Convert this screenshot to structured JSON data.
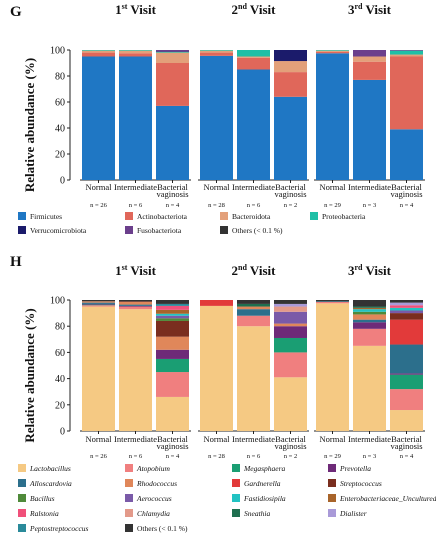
{
  "chart_data": [
    {
      "type": "bar",
      "stacked": true,
      "panel_label": "G",
      "ylabel": "Relative abundance (%)",
      "ylim": [
        0,
        100
      ],
      "yticks": [
        0,
        20,
        40,
        60,
        80,
        100
      ],
      "categories": [
        "Normal",
        "Intermediate",
        "Bacterial vaginosis"
      ],
      "legend_placement": "bottom",
      "groups": [
        {
          "title": "Visit",
          "ordinal_num": "1",
          "ordinal_suffix": "st",
          "counts": [
            "n = 26",
            "n = 6",
            "n = 4"
          ],
          "series": [
            {
              "name": "Firmicutes",
              "values": [
                95,
                95,
                57
              ]
            },
            {
              "name": "Actinobacteriota",
              "values": [
                3,
                2.5,
                33
              ]
            },
            {
              "name": "Bacteroidota",
              "values": [
                1.5,
                2,
                8
              ]
            },
            {
              "name": "Proteobacteria",
              "values": [
                0.5,
                0.5,
                0.5
              ]
            },
            {
              "name": "Verrucomicrobiota",
              "values": [
                0,
                0,
                0.5
              ]
            },
            {
              "name": "Fusobacteriota",
              "values": [
                0,
                0,
                1
              ]
            },
            {
              "name": "Others (< 0.1 %)",
              "values": [
                0,
                0,
                0
              ]
            }
          ]
        },
        {
          "title": "Visit",
          "ordinal_num": "2",
          "ordinal_suffix": "nd",
          "counts": [
            "n = 28",
            "n = 6",
            "n = 2"
          ],
          "series": [
            {
              "name": "Firmicutes",
              "values": [
                95.5,
                85,
                64
              ]
            },
            {
              "name": "Actinobacteriota",
              "values": [
                2.5,
                9,
                19
              ]
            },
            {
              "name": "Bacteroidota",
              "values": [
                1.5,
                1,
                8.5
              ]
            },
            {
              "name": "Proteobacteria",
              "values": [
                0.5,
                5,
                0
              ]
            },
            {
              "name": "Verrucomicrobiota",
              "values": [
                0,
                0,
                8.5
              ]
            },
            {
              "name": "Fusobacteriota",
              "values": [
                0,
                0,
                0
              ]
            },
            {
              "name": "Others (< 0.1 %)",
              "values": [
                0,
                0,
                0
              ]
            }
          ]
        },
        {
          "title": "Visit",
          "ordinal_num": "3",
          "ordinal_suffix": "rd",
          "counts": [
            "n = 29",
            "n = 3",
            "n = 4"
          ],
          "series": [
            {
              "name": "Firmicutes",
              "values": [
                97.5,
                77,
                39
              ]
            },
            {
              "name": "Actinobacteriota",
              "values": [
                1,
                14,
                56
              ]
            },
            {
              "name": "Bacteroidota",
              "values": [
                1,
                4,
                1.5
              ]
            },
            {
              "name": "Proteobacteria",
              "values": [
                0.5,
                0,
                3
              ]
            },
            {
              "name": "Verrucomicrobiota",
              "values": [
                0,
                0,
                0
              ]
            },
            {
              "name": "Fusobacteriota",
              "values": [
                0,
                5,
                0.5
              ]
            },
            {
              "name": "Others (< 0.1 %)",
              "values": [
                0,
                0,
                0
              ]
            }
          ]
        }
      ],
      "legend": [
        {
          "name": "Firmicutes",
          "color": "#1f77c4"
        },
        {
          "name": "Actinobacteriota",
          "color": "#e0675a"
        },
        {
          "name": "Bacteroidota",
          "color": "#e3a07a"
        },
        {
          "name": "Proteobacteria",
          "color": "#1fbfa6"
        },
        {
          "name": "Verrucomicrobiota",
          "color": "#1b1b6b"
        },
        {
          "name": "Fusobacteriota",
          "color": "#6b3f8c"
        },
        {
          "name": "Others (< 0.1 %)",
          "color": "#333333"
        }
      ]
    },
    {
      "type": "bar",
      "stacked": true,
      "panel_label": "H",
      "ylabel": "Relative abundance (%)",
      "ylim": [
        0,
        100
      ],
      "yticks": [
        0,
        20,
        40,
        60,
        80,
        100
      ],
      "categories": [
        "Normal",
        "Intermediate",
        "Bacterial vaginosis"
      ],
      "legend_placement": "bottom",
      "groups": [
        {
          "title": "Visit",
          "ordinal_num": "1",
          "ordinal_suffix": "st",
          "counts": [
            "n = 26",
            "n = 6",
            "n = 4"
          ],
          "series": [
            {
              "name": "Lactobacillus",
              "values": [
                95,
                93,
                26
              ]
            },
            {
              "name": "Atopobium",
              "values": [
                1,
                2,
                19
              ]
            },
            {
              "name": "Megasphaera",
              "values": [
                0.5,
                0,
                10
              ]
            },
            {
              "name": "Prevotella",
              "values": [
                0.5,
                0.5,
                7
              ]
            },
            {
              "name": "Alloscardovia",
              "values": [
                1,
                1,
                0
              ]
            },
            {
              "name": "Rhodococcus",
              "values": [
                1,
                2,
                10
              ]
            },
            {
              "name": "Gardnerella",
              "values": [
                0,
                0,
                0
              ]
            },
            {
              "name": "Streptococcus",
              "values": [
                0,
                0.5,
                12
              ]
            },
            {
              "name": "Bacillus",
              "values": [
                0,
                0,
                2
              ]
            },
            {
              "name": "Aerococcus",
              "values": [
                0,
                0,
                2
              ]
            },
            {
              "name": "Fastidiosipila",
              "values": [
                0,
                0,
                1.5
              ]
            },
            {
              "name": "Enterobacteriaceae_Uncultured",
              "values": [
                0,
                0,
                3
              ]
            },
            {
              "name": "Ralstonia",
              "values": [
                0,
                0,
                3
              ]
            },
            {
              "name": "Chlamydia",
              "values": [
                0,
                0,
                0
              ]
            },
            {
              "name": "Sneathia",
              "values": [
                0,
                0,
                0
              ]
            },
            {
              "name": "Dialister",
              "values": [
                0,
                0,
                0
              ]
            },
            {
              "name": "Peptostreptococcus",
              "values": [
                0,
                0,
                1.5
              ]
            },
            {
              "name": "Others (< 0.1 %)",
              "values": [
                1,
                1,
                3
              ]
            }
          ]
        },
        {
          "title": "Visit",
          "ordinal_num": "2",
          "ordinal_suffix": "nd",
          "counts": [
            "n = 28",
            "n = 6",
            "n = 2"
          ],
          "series": [
            {
              "name": "Lactobacillus",
              "values": [
                95.5,
                80,
                41
              ]
            },
            {
              "name": "Atopobium",
              "values": [
                0,
                8,
                19
              ]
            },
            {
              "name": "Megasphaera",
              "values": [
                0,
                0,
                11
              ]
            },
            {
              "name": "Prevotella",
              "values": [
                0,
                0,
                9
              ]
            },
            {
              "name": "Alloscardovia",
              "values": [
                0,
                5,
                0
              ]
            },
            {
              "name": "Rhodococcus",
              "values": [
                0,
                2,
                2
              ]
            },
            {
              "name": "Gardnerella",
              "values": [
                4.5,
                0,
                0
              ]
            },
            {
              "name": "Streptococcus",
              "values": [
                0,
                0,
                0
              ]
            },
            {
              "name": "Bacillus",
              "values": [
                0,
                0,
                0
              ]
            },
            {
              "name": "Aerococcus",
              "values": [
                0,
                0,
                9
              ]
            },
            {
              "name": "Fastidiosipila",
              "values": [
                0,
                0,
                0
              ]
            },
            {
              "name": "Enterobacteriaceae_Uncultured",
              "values": [
                0,
                0,
                0
              ]
            },
            {
              "name": "Ralstonia",
              "values": [
                0,
                0,
                0
              ]
            },
            {
              "name": "Chlamydia",
              "values": [
                0,
                0,
                4
              ]
            },
            {
              "name": "Sneathia",
              "values": [
                0,
                2,
                0
              ]
            },
            {
              "name": "Dialister",
              "values": [
                0,
                0,
                2
              ]
            },
            {
              "name": "Peptostreptococcus",
              "values": [
                0,
                0,
                0
              ]
            },
            {
              "name": "Others (< 0.1 %)",
              "values": [
                0,
                3,
                3
              ]
            }
          ]
        },
        {
          "title": "Visit",
          "ordinal_num": "3",
          "ordinal_suffix": "rd",
          "counts": [
            "n = 29",
            "n = 3",
            "n = 4"
          ],
          "series": [
            {
              "name": "Lactobacillus",
              "values": [
                97.5,
                65,
                16
              ]
            },
            {
              "name": "Atopobium",
              "values": [
                1,
                13,
                16
              ]
            },
            {
              "name": "Megasphaera",
              "values": [
                0,
                0,
                11
              ]
            },
            {
              "name": "Prevotella",
              "values": [
                0,
                5,
                1
              ]
            },
            {
              "name": "Alloscardovia",
              "values": [
                0.5,
                2,
                22
              ]
            },
            {
              "name": "Rhodococcus",
              "values": [
                0,
                4,
                0
              ]
            },
            {
              "name": "Gardnerella",
              "values": [
                0,
                0,
                19
              ]
            },
            {
              "name": "Streptococcus",
              "values": [
                0,
                0,
                5
              ]
            },
            {
              "name": "Bacillus",
              "values": [
                0,
                2,
                0
              ]
            },
            {
              "name": "Aerococcus",
              "values": [
                0,
                0,
                2
              ]
            },
            {
              "name": "Fastidiosipila",
              "values": [
                0,
                2,
                2
              ]
            },
            {
              "name": "Enterobacteriaceae_Uncultured",
              "values": [
                0,
                1,
                0
              ]
            },
            {
              "name": "Ralstonia",
              "values": [
                0,
                0,
                2
              ]
            },
            {
              "name": "Chlamydia",
              "values": [
                0,
                0,
                0
              ]
            },
            {
              "name": "Sneathia",
              "values": [
                0,
                1,
                0
              ]
            },
            {
              "name": "Dialister",
              "values": [
                0,
                0,
                2
              ]
            },
            {
              "name": "Peptostreptococcus",
              "values": [
                0,
                0,
                0
              ]
            },
            {
              "name": "Others (< 0.1 %)",
              "values": [
                1,
                5,
                2
              ]
            }
          ]
        }
      ],
      "legend": [
        {
          "name": "Lactobacillus",
          "color": "#f5c983",
          "italic": true
        },
        {
          "name": "Atopobium",
          "color": "#f07f7f",
          "italic": true
        },
        {
          "name": "Megasphaera",
          "color": "#1a9e73",
          "italic": true
        },
        {
          "name": "Prevotella",
          "color": "#6e2a78",
          "italic": true
        },
        {
          "name": "Alloscardovia",
          "color": "#2c6f8c",
          "italic": true
        },
        {
          "name": "Rhodococcus",
          "color": "#e0875a",
          "italic": true
        },
        {
          "name": "Gardnerella",
          "color": "#e23a3a",
          "italic": true
        },
        {
          "name": "Streptococcus",
          "color": "#7a2e1f",
          "italic": true
        },
        {
          "name": "Bacillus",
          "color": "#4f8a3a",
          "italic": true
        },
        {
          "name": "Aerococcus",
          "color": "#7a5aa8",
          "italic": true
        },
        {
          "name": "Fastidiosipila",
          "color": "#22c2c2",
          "italic": true
        },
        {
          "name": "Enterobacteriaceae_Uncultured",
          "color": "#a8642a",
          "italic": true
        },
        {
          "name": "Ralstonia",
          "color": "#f0507a",
          "italic": true
        },
        {
          "name": "Chlamydia",
          "color": "#e39a8a",
          "italic": true
        },
        {
          "name": "Sneathia",
          "color": "#1f6f4f",
          "italic": true
        },
        {
          "name": "Dialister",
          "color": "#a99ad8",
          "italic": true
        },
        {
          "name": "Peptostreptococcus",
          "color": "#2a8a9a",
          "italic": true
        },
        {
          "name": "Others (< 0.1 %)",
          "color": "#333333",
          "italic": false
        }
      ]
    }
  ]
}
